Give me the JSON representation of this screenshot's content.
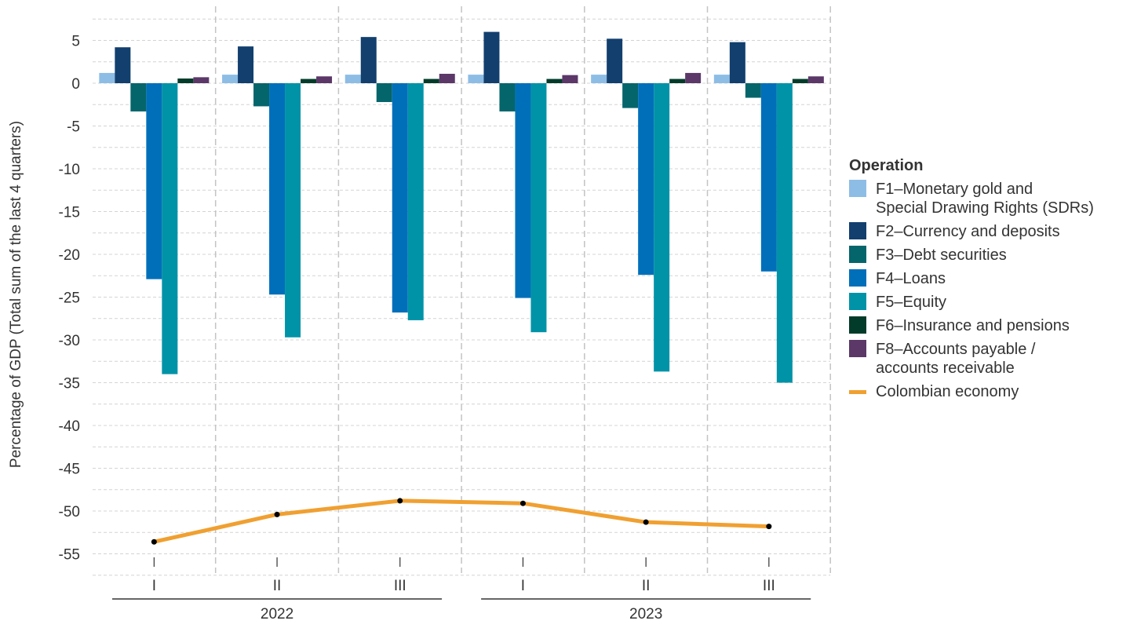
{
  "chart_data": {
    "type": "bar",
    "ylabel": "Percentage of GDP (Total sum of the last 4 quarters)",
    "ylim": [
      -57.5,
      8.5
    ],
    "yticks": [
      5,
      0,
      -5,
      -10,
      -15,
      -20,
      -25,
      -30,
      -35,
      -40,
      -45,
      -50,
      -55
    ],
    "grid": true,
    "legend_position": "right",
    "legend_title": "Operation",
    "categories": [
      "I",
      "II",
      "III",
      "I",
      "II",
      "III"
    ],
    "year_groups": [
      {
        "label": "2022",
        "span": 3
      },
      {
        "label": "2023",
        "span": 3
      }
    ],
    "series": [
      {
        "name": "F1–Monetary gold and Special Drawing Rights (SDRs)",
        "color": "#8dbde5",
        "values": [
          1.2,
          1.0,
          1.0,
          1.0,
          1.0,
          1.0
        ]
      },
      {
        "name": "F2–Currency and deposits",
        "color": "#123f6e",
        "values": [
          4.2,
          4.3,
          5.4,
          6.0,
          5.2,
          4.8
        ]
      },
      {
        "name": "F3–Debt securities",
        "color": "#04656b",
        "values": [
          -3.3,
          -2.7,
          -2.2,
          -3.3,
          -2.9,
          -1.7
        ]
      },
      {
        "name": "F4–Loans",
        "color": "#006fba",
        "values": [
          -22.9,
          -24.7,
          -26.8,
          -25.1,
          -22.4,
          -22.0
        ]
      },
      {
        "name": "F5–Equity",
        "color": "#0093a7",
        "values": [
          -34.0,
          -29.7,
          -27.7,
          -29.1,
          -33.7,
          -35.0
        ]
      },
      {
        "name": "F6–Insurance and pensions",
        "color": "#023b2a",
        "values": [
          0.55,
          0.5,
          0.5,
          0.5,
          0.5,
          0.5
        ]
      },
      {
        "name": "F8–Accounts payable / accounts receivable",
        "color": "#5b3868",
        "values": [
          0.7,
          0.8,
          1.1,
          0.95,
          1.2,
          0.8
        ]
      }
    ],
    "line_series": {
      "name": "Colombian economy",
      "color": "#f0a031",
      "values": [
        -53.6,
        -50.4,
        -48.8,
        -49.1,
        -51.3,
        -51.8
      ]
    }
  },
  "legend": {
    "title": "Operation",
    "items": [
      {
        "line1": "F1–Monetary gold and",
        "line2": "Special Drawing Rights (SDRs)"
      },
      {
        "line1": "F2–Currency and deposits"
      },
      {
        "line1": "F3–Debt securities"
      },
      {
        "line1": "F4–Loans"
      },
      {
        "line1": "F5–Equity"
      },
      {
        "line1": "F6–Insurance and pensions"
      },
      {
        "line1": "F8–Accounts payable /",
        "line2": "accounts receivable"
      }
    ],
    "line_label": "Colombian economy"
  }
}
